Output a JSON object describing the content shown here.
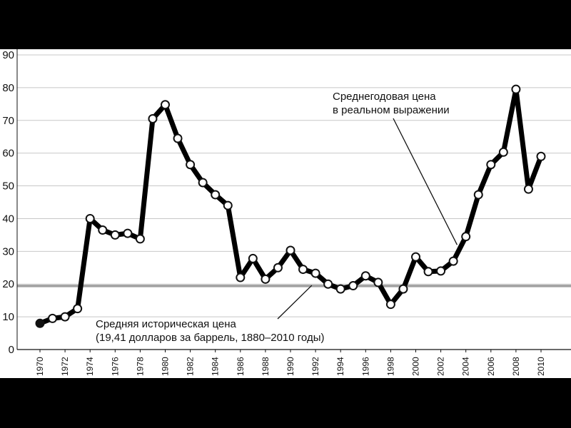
{
  "chart_data": {
    "type": "line",
    "title": "",
    "xlabel": "",
    "ylabel": "",
    "ylim": [
      0,
      90
    ],
    "xlim": [
      1970,
      2010
    ],
    "y_ticks": [
      "0",
      "10",
      "20",
      "30",
      "40",
      "50",
      "60",
      "70",
      "80",
      "90"
    ],
    "x_ticks": [
      "1970",
      "1972",
      "1974",
      "1976",
      "1978",
      "1980",
      "1982",
      "1984",
      "1986",
      "1988",
      "1990",
      "1992",
      "1994",
      "1996",
      "1998",
      "2000",
      "2002",
      "2004",
      "2006",
      "2008",
      "2010"
    ],
    "grid": "horizontal",
    "series": [
      {
        "name": "Среднегодовая цена в реальном выражении",
        "color": "#000000",
        "x": [
          1970,
          1971,
          1972,
          1973,
          1974,
          1975,
          1976,
          1977,
          1978,
          1979,
          1980,
          1981,
          1982,
          1983,
          1984,
          1985,
          1986,
          1987,
          1988,
          1989,
          1990,
          1991,
          1992,
          1993,
          1994,
          1995,
          1996,
          1997,
          1998,
          1999,
          2000,
          2001,
          2002,
          2003,
          2004,
          2005,
          2006,
          2007,
          2008,
          2009,
          2010
        ],
        "y": [
          8,
          9.5,
          10,
          12.5,
          40,
          36.5,
          35,
          35.5,
          33.8,
          70.5,
          74.8,
          64.5,
          56.5,
          51,
          47.3,
          44,
          22,
          27.8,
          21.5,
          25,
          30.3,
          24.5,
          23.3,
          20,
          18.5,
          19.5,
          22.5,
          20.5,
          13.8,
          18.5,
          28.3,
          23.8,
          24,
          27,
          34.5,
          47.3,
          56.5,
          60.3,
          79.5,
          49,
          59
        ]
      }
    ],
    "reference_line": {
      "label": "Средняя историческая цена",
      "value": 19.41,
      "color": "#a0a0a0"
    },
    "annotations": {
      "real_price": [
        "Среднегодовая цена",
        "в реальном выражении"
      ],
      "historical_avg": [
        "Средняя историческая цена",
        "(19,41 долларов за баррель, 1880–2010 годы)"
      ]
    }
  }
}
